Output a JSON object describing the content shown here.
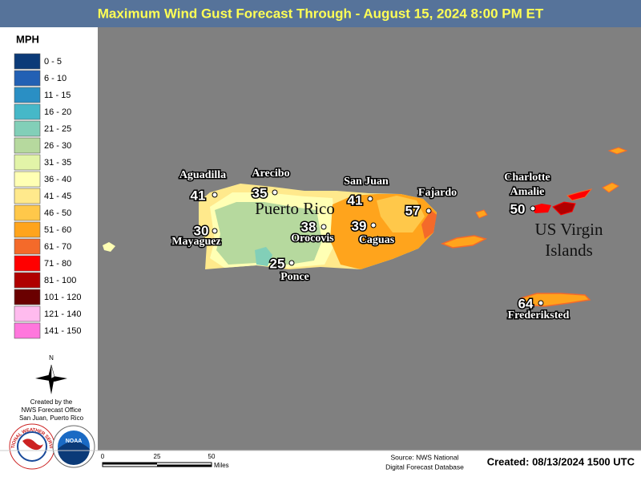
{
  "header": {
    "title": "Maximum Wind Gust Forecast Through - August 15, 2024 8:00 PM ET"
  },
  "legend": {
    "title": "MPH",
    "items": [
      {
        "label": "0 - 5",
        "color": "#0b3a78"
      },
      {
        "label": "6 - 10",
        "color": "#2260b4"
      },
      {
        "label": "11 - 15",
        "color": "#2a8fc4"
      },
      {
        "label": "16 - 20",
        "color": "#46b8c8"
      },
      {
        "label": "21 - 25",
        "color": "#82cfb8"
      },
      {
        "label": "26 - 30",
        "color": "#b6d99e"
      },
      {
        "label": "31 - 35",
        "color": "#e2f4a8"
      },
      {
        "label": "36 - 40",
        "color": "#ffffb4"
      },
      {
        "label": "41 - 45",
        "color": "#ffe98c"
      },
      {
        "label": "46 - 50",
        "color": "#ffc84a"
      },
      {
        "label": "51 - 60",
        "color": "#ffa41c"
      },
      {
        "label": "61 - 70",
        "color": "#f46a2a"
      },
      {
        "label": "71 - 80",
        "color": "#ff0000"
      },
      {
        "label": "81 - 100",
        "color": "#b00000"
      },
      {
        "label": "101 - 120",
        "color": "#6a0000"
      },
      {
        "label": "121 - 140",
        "color": "#ffbbee"
      },
      {
        "label": "141 - 150",
        "color": "#ff77dd"
      }
    ]
  },
  "north": "N",
  "credits": [
    "Created by the",
    "NWS Forecast Office",
    "San Juan, Puerto Rico"
  ],
  "logos": {
    "nws": "NATIONAL WEATHER SERVICE",
    "noaa": "NOAA"
  },
  "map": {
    "region_labels": [
      [
        "Puerto Rico"
      ],
      [
        "US Virgin",
        "Islands"
      ]
    ],
    "locations": [
      {
        "name": [
          "Aguadilla"
        ],
        "gust": 41
      },
      {
        "name": [
          "Arecibo"
        ],
        "gust": 35
      },
      {
        "name": [
          "San Juan"
        ],
        "gust": 41
      },
      {
        "name": [
          "Fajardo"
        ],
        "gust": 57
      },
      {
        "name": [
          "Charlotte",
          "Amalie"
        ],
        "gust": 50
      },
      {
        "name": [
          "Mayaguez"
        ],
        "gust": 30
      },
      {
        "name": [
          "Orocovis"
        ],
        "gust": 38
      },
      {
        "name": [
          "Caguas"
        ],
        "gust": 39
      },
      {
        "name": [
          "Ponce"
        ],
        "gust": 25
      },
      {
        "name": [
          "Frederiksted"
        ],
        "gust": 64
      }
    ]
  },
  "scale": {
    "ticks": [
      0,
      25,
      50
    ],
    "unit": "Miles"
  },
  "footer": {
    "source": [
      "Source: NWS National",
      "Digital Forecast Database"
    ],
    "created": "Created: 08/13/2024 1500 UTC"
  }
}
